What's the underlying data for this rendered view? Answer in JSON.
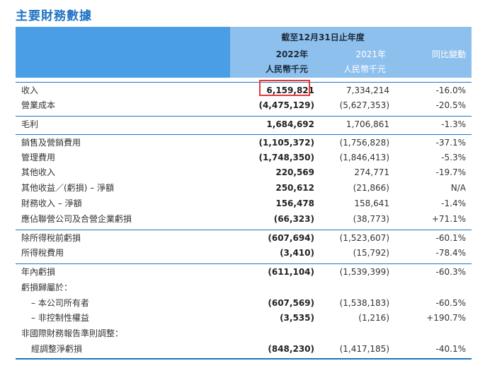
{
  "title": "主要財務數據",
  "header": {
    "period": "截至12月31日止年度",
    "year_2022": "2022年",
    "year_2021": "2021年",
    "change": "同比變動",
    "unit_2022": "人民幣千元",
    "unit_2021": "人民幣千元"
  },
  "rows": [
    {
      "label": "收入",
      "v2022": "6,159,821",
      "v2021": "7,334,214",
      "change": "-16.0%"
    },
    {
      "label": "營業成本",
      "v2022": "(4,475,129)",
      "v2021": "(5,627,353)",
      "change": "-20.5%"
    },
    {
      "label": "毛利",
      "v2022": "1,684,692",
      "v2021": "1,706,861",
      "change": "-1.3%"
    },
    {
      "label": "銷售及營銷費用",
      "v2022": "(1,105,372)",
      "v2021": "(1,756,828)",
      "change": "-37.1%"
    },
    {
      "label": "管理費用",
      "v2022": "(1,748,350)",
      "v2021": "(1,846,413)",
      "change": "-5.3%"
    },
    {
      "label": "其他收入",
      "v2022": "220,569",
      "v2021": "274,771",
      "change": "-19.7%"
    },
    {
      "label": "其他收益／(虧損) – 淨額",
      "v2022": "250,612",
      "v2021": "(21,866)",
      "change": "N/A"
    },
    {
      "label": "財務收入 – 淨額",
      "v2022": "156,478",
      "v2021": "158,641",
      "change": "-1.4%"
    },
    {
      "label": "應佔聯營公司及合營企業虧損",
      "v2022": "(66,323)",
      "v2021": "(38,773)",
      "change": "+71.1%"
    },
    {
      "label": "除所得稅前虧損",
      "v2022": "(607,694)",
      "v2021": "(1,523,607)",
      "change": "-60.1%"
    },
    {
      "label": "所得稅費用",
      "v2022": "(3,410)",
      "v2021": "(15,792)",
      "change": "-78.4%"
    },
    {
      "label": "年內虧損",
      "v2022": "(611,104)",
      "v2021": "(1,539,399)",
      "change": "-60.3%"
    },
    {
      "label": "虧損歸屬於：",
      "v2022": "",
      "v2021": "",
      "change": ""
    },
    {
      "label": "– 本公司所有者",
      "v2022": "(607,569)",
      "v2021": "(1,538,183)",
      "change": "-60.5%"
    },
    {
      "label": "– 非控制性權益",
      "v2022": "(3,535)",
      "v2021": "(1,216)",
      "change": "+190.7%"
    },
    {
      "label": "非國際財務報告準則調整：",
      "v2022": "",
      "v2021": "",
      "change": ""
    },
    {
      "label": "經調整淨虧損",
      "v2022": "(848,230)",
      "v2021": "(1,417,185)",
      "change": "-40.1%"
    }
  ]
}
